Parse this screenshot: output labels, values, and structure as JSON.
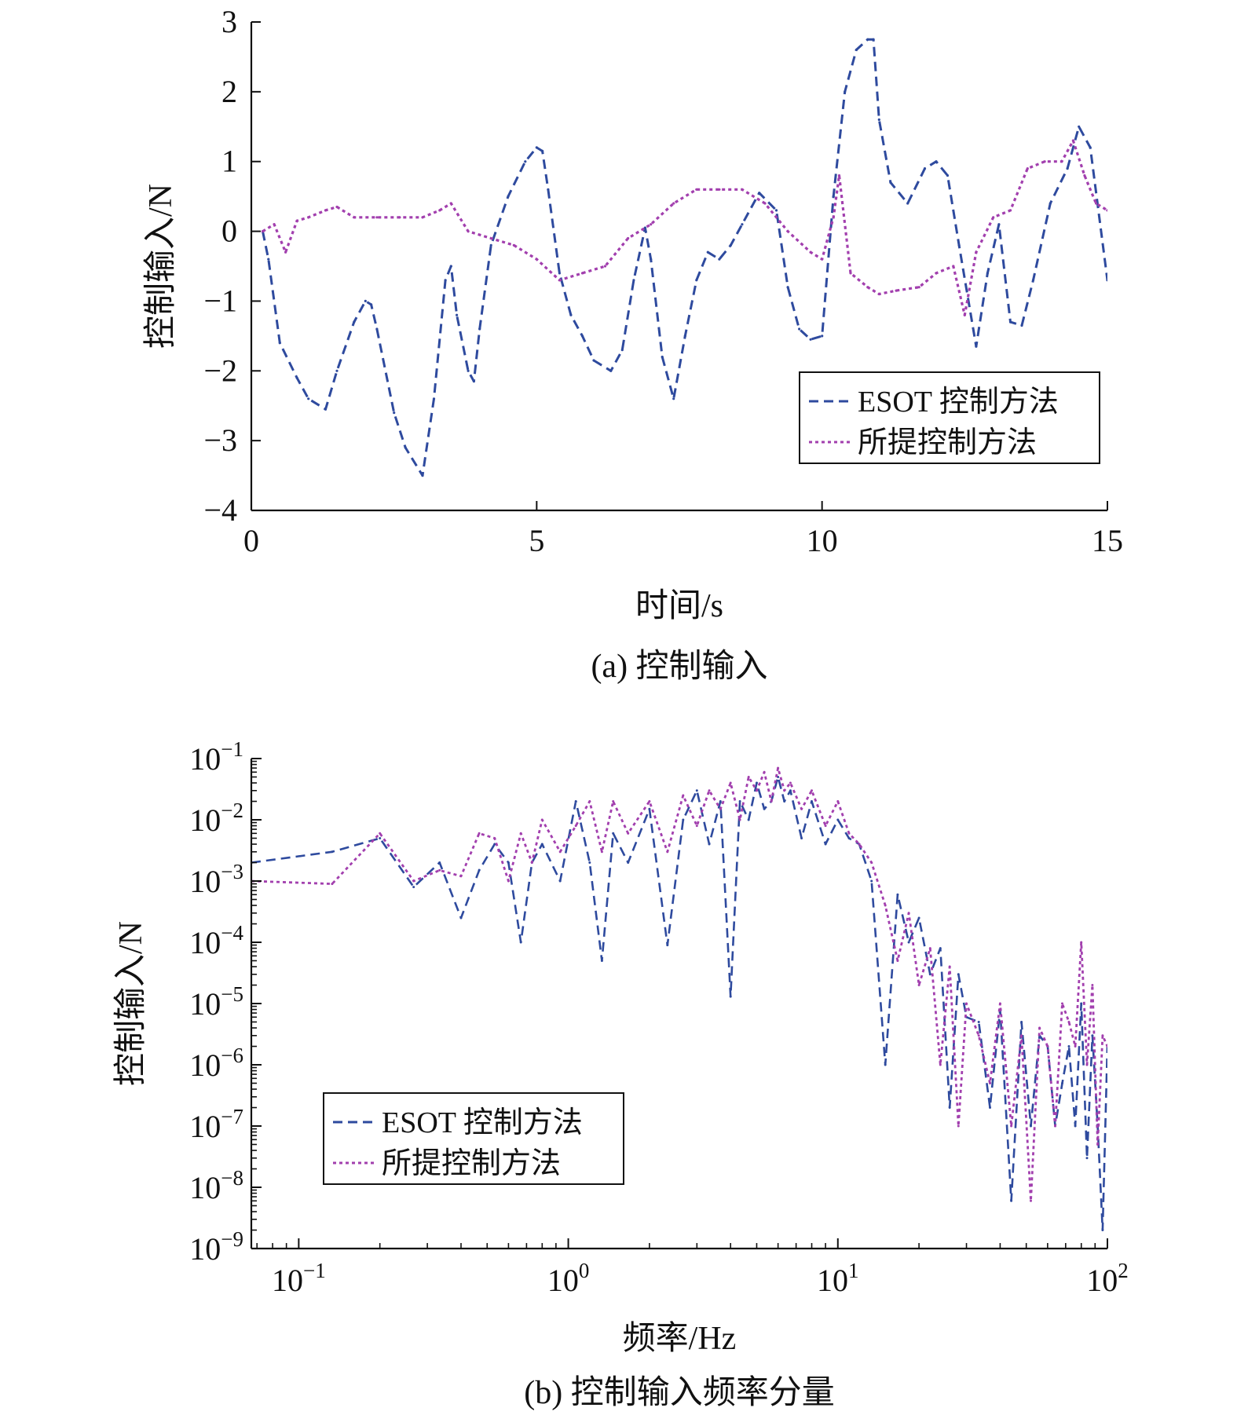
{
  "colors": {
    "esot": "#2e4a9e",
    "proposed": "#a23fae",
    "axis": "#111111"
  },
  "chart_data": [
    {
      "type": "line",
      "caption": "(a) 控制输入",
      "xlabel": "时间/s",
      "ylabel": "控制输入/N",
      "xlim": [
        0,
        15
      ],
      "ylim": [
        -4,
        3
      ],
      "xticks": [
        0,
        5,
        10,
        15
      ],
      "xtick_labels": [
        "0",
        "5",
        "10",
        "15"
      ],
      "yticks": [
        -4,
        -3,
        -2,
        -1,
        0,
        1,
        2,
        3
      ],
      "ytick_labels": [
        "−4",
        "−3",
        "−2",
        "−1",
        "0",
        "1",
        "2",
        "3"
      ],
      "legend": [
        "ESOT 控制方法",
        "所提控制方法"
      ],
      "legend_position": "lower-right",
      "series": [
        {
          "name": "ESOT 控制方法",
          "style": "dashed",
          "x": [
            0.2,
            0.3,
            0.5,
            0.8,
            1.0,
            1.3,
            1.5,
            1.8,
            2.0,
            2.1,
            2.2,
            2.5,
            2.7,
            3.0,
            3.2,
            3.4,
            3.5,
            3.6,
            3.8,
            3.9,
            4.0,
            4.2,
            4.5,
            4.8,
            5.0,
            5.1,
            5.2,
            5.4,
            5.6,
            5.8,
            6.0,
            6.3,
            6.5,
            6.7,
            6.9,
            7.0,
            7.2,
            7.4,
            7.6,
            7.8,
            8.0,
            8.2,
            8.4,
            8.6,
            8.9,
            9.2,
            9.4,
            9.6,
            9.8,
            10.0,
            10.2,
            10.4,
            10.6,
            10.8,
            10.9,
            11.0,
            11.2,
            11.5,
            11.8,
            12.0,
            12.2,
            12.4,
            12.7,
            12.9,
            13.1,
            13.3,
            13.5,
            13.7,
            14.0,
            14.3,
            14.5,
            14.7,
            15.0
          ],
          "y": [
            0.0,
            -0.4,
            -1.6,
            -2.1,
            -2.4,
            -2.55,
            -2.0,
            -1.3,
            -1.0,
            -1.05,
            -1.4,
            -2.6,
            -3.1,
            -3.5,
            -2.4,
            -0.7,
            -0.5,
            -1.2,
            -2.0,
            -2.15,
            -1.4,
            -0.2,
            0.5,
            1.0,
            1.2,
            1.15,
            0.6,
            -0.6,
            -1.2,
            -1.5,
            -1.85,
            -2.0,
            -1.7,
            -0.7,
            0.05,
            -0.4,
            -1.8,
            -2.4,
            -1.5,
            -0.7,
            -0.3,
            -0.4,
            -0.2,
            0.1,
            0.55,
            0.3,
            -0.8,
            -1.4,
            -1.55,
            -1.5,
            0.5,
            2.0,
            2.6,
            2.75,
            2.75,
            1.6,
            0.7,
            0.4,
            0.9,
            1.0,
            0.8,
            -0.2,
            -1.65,
            -0.6,
            0.1,
            -1.3,
            -1.35,
            -0.7,
            0.4,
            0.9,
            1.5,
            1.2,
            -0.7
          ]
        },
        {
          "name": "所提控制方法",
          "style": "dotted",
          "x": [
            0.2,
            0.4,
            0.6,
            0.8,
            1.0,
            1.3,
            1.5,
            1.8,
            2.2,
            2.6,
            3.0,
            3.3,
            3.5,
            3.8,
            4.2,
            4.6,
            5.0,
            5.4,
            5.8,
            6.2,
            6.6,
            7.0,
            7.4,
            7.8,
            8.2,
            8.6,
            9.0,
            9.4,
            9.8,
            10.0,
            10.2,
            10.3,
            10.5,
            10.8,
            11.0,
            11.3,
            11.7,
            12.0,
            12.3,
            12.5,
            12.7,
            13.0,
            13.3,
            13.6,
            13.9,
            14.2,
            14.4,
            14.6,
            14.8,
            15.0
          ],
          "y": [
            0.0,
            0.1,
            -0.3,
            0.15,
            0.2,
            0.3,
            0.35,
            0.2,
            0.2,
            0.2,
            0.2,
            0.3,
            0.4,
            0.0,
            -0.1,
            -0.2,
            -0.4,
            -0.7,
            -0.6,
            -0.5,
            -0.1,
            0.1,
            0.4,
            0.6,
            0.6,
            0.6,
            0.4,
            0.0,
            -0.3,
            -0.4,
            0.2,
            0.8,
            -0.6,
            -0.8,
            -0.9,
            -0.85,
            -0.8,
            -0.6,
            -0.5,
            -1.2,
            -0.3,
            0.2,
            0.3,
            0.9,
            1.0,
            1.0,
            1.3,
            0.8,
            0.4,
            0.3
          ]
        }
      ]
    },
    {
      "type": "line",
      "caption": "(b) 控制输入频率分量",
      "xlabel": "频率/Hz",
      "ylabel": "控制输入/N",
      "xscale": "log",
      "yscale": "log",
      "xlim": [
        0.0667,
        100
      ],
      "ylim": [
        1e-09,
        0.1
      ],
      "xticks": [
        0.1,
        1,
        10,
        100
      ],
      "xtick_labels": [
        {
          "base": "10",
          "exp": "−1"
        },
        {
          "base": "10",
          "exp": "0"
        },
        {
          "base": "10",
          "exp": "1"
        },
        {
          "base": "10",
          "exp": "2"
        }
      ],
      "yticks": [
        1e-09,
        1e-08,
        1e-07,
        1e-06,
        1e-05,
        0.0001,
        0.001,
        0.01,
        0.1
      ],
      "ytick_labels": [
        {
          "base": "10",
          "exp": "−9"
        },
        {
          "base": "10",
          "exp": "−8"
        },
        {
          "base": "10",
          "exp": "−7"
        },
        {
          "base": "10",
          "exp": "−6"
        },
        {
          "base": "10",
          "exp": "−5"
        },
        {
          "base": "10",
          "exp": "−4"
        },
        {
          "base": "10",
          "exp": "−3"
        },
        {
          "base": "10",
          "exp": "−2"
        },
        {
          "base": "10",
          "exp": "−1"
        }
      ],
      "legend": [
        "ESOT 控制方法",
        "所提控制方法"
      ],
      "legend_position": "lower-left",
      "series": [
        {
          "name": "ESOT 控制方法",
          "style": "dashed",
          "x": [
            0.0667,
            0.133,
            0.2,
            0.267,
            0.333,
            0.4,
            0.467,
            0.533,
            0.6,
            0.667,
            0.733,
            0.8,
            0.933,
            1.067,
            1.2,
            1.333,
            1.467,
            1.667,
            2.0,
            2.333,
            2.667,
            3.0,
            3.333,
            3.667,
            4.0,
            4.333,
            4.667,
            5.0,
            5.333,
            5.667,
            6.0,
            6.333,
            6.667,
            7.333,
            8.0,
            9.0,
            10.0,
            11.0,
            12.0,
            13.333,
            15.0,
            16.667,
            18.333,
            20.0,
            22.0,
            24.0,
            26.0,
            28.0,
            30.0,
            33.333,
            36.667,
            40.0,
            44.0,
            48.0,
            52.0,
            56.0,
            60.0,
            64.0,
            68.0,
            72.0,
            76.0,
            80.0,
            84.0,
            88.0,
            92.0,
            96.0,
            100.0
          ],
          "y": [
            0.002,
            0.003,
            0.005,
            0.0008,
            0.002,
            0.00025,
            0.0015,
            0.004,
            0.002,
            0.0001,
            0.002,
            0.004,
            0.001,
            0.02,
            0.002,
            5e-05,
            0.006,
            0.002,
            0.015,
            9e-05,
            0.01,
            0.03,
            0.004,
            0.02,
            1.3e-05,
            0.02,
            0.01,
            0.04,
            0.015,
            0.02,
            0.05,
            0.02,
            0.03,
            0.005,
            0.02,
            0.004,
            0.01,
            0.005,
            0.004,
            0.001,
            1e-06,
            0.0006,
            0.0001,
            0.00025,
            3e-05,
            8e-05,
            2e-07,
            3e-05,
            6e-06,
            5e-06,
            2e-07,
            8e-06,
            6e-09,
            5e-06,
            1e-07,
            3e-06,
            2e-06,
            1e-07,
            5e-07,
            2e-06,
            1e-07,
            1e-05,
            3e-08,
            3e-06,
            1e-07,
            2e-09,
            2e-06
          ]
        },
        {
          "name": "所提控制方法",
          "style": "dotted",
          "x": [
            0.0667,
            0.133,
            0.2,
            0.267,
            0.333,
            0.4,
            0.467,
            0.533,
            0.6,
            0.667,
            0.733,
            0.8,
            0.933,
            1.067,
            1.2,
            1.333,
            1.467,
            1.667,
            2.0,
            2.333,
            2.667,
            3.0,
            3.333,
            3.667,
            4.0,
            4.333,
            4.667,
            5.0,
            5.333,
            5.667,
            6.0,
            6.333,
            6.667,
            7.333,
            8.0,
            9.0,
            10.0,
            11.0,
            12.0,
            13.333,
            15.0,
            16.667,
            18.333,
            20.0,
            22.0,
            24.0,
            26.0,
            28.0,
            30.0,
            33.333,
            36.667,
            40.0,
            44.0,
            48.0,
            52.0,
            56.0,
            60.0,
            64.0,
            68.0,
            72.0,
            76.0,
            80.0,
            84.0,
            88.0,
            92.0,
            96.0,
            100.0
          ],
          "y": [
            0.001,
            0.0009,
            0.006,
            0.001,
            0.0015,
            0.0012,
            0.006,
            0.005,
            0.001,
            0.006,
            0.002,
            0.01,
            0.003,
            0.008,
            0.02,
            0.003,
            0.02,
            0.006,
            0.02,
            0.003,
            0.025,
            0.008,
            0.03,
            0.015,
            0.04,
            0.01,
            0.05,
            0.03,
            0.06,
            0.02,
            0.07,
            0.03,
            0.04,
            0.015,
            0.03,
            0.008,
            0.02,
            0.006,
            0.004,
            0.002,
            0.0004,
            5e-05,
            0.0003,
            2e-05,
            8e-05,
            1e-06,
            4e-05,
            1e-07,
            1e-05,
            3e-06,
            5e-07,
            1e-05,
            1e-07,
            3e-06,
            6e-09,
            4e-06,
            2e-06,
            1e-07,
            1e-05,
            5e-06,
            2e-06,
            0.0001,
            1e-06,
            2e-05,
            5e-08,
            3e-06,
            2e-06
          ]
        }
      ]
    }
  ]
}
